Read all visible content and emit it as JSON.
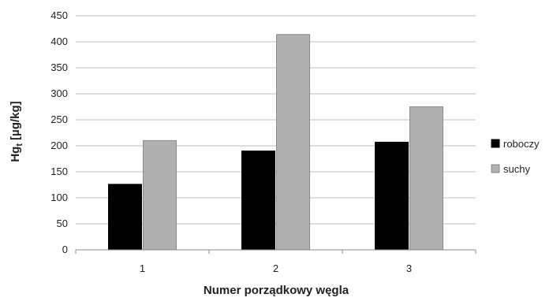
{
  "chart_data": {
    "type": "bar",
    "categories": [
      "1",
      "2",
      "3"
    ],
    "series": [
      {
        "name": "roboczy",
        "values": [
          126,
          190,
          207
        ],
        "color": "#000000"
      },
      {
        "name": "suchy",
        "values": [
          210,
          414,
          275
        ],
        "color": "#b0b0b0"
      }
    ],
    "yticks": [
      "0",
      "50",
      "100",
      "150",
      "200",
      "250",
      "300",
      "350",
      "400",
      "450"
    ],
    "ylim": [
      0,
      450
    ],
    "ylabel": "Hg",
    "ylabel_sub": "t",
    "ylabel_unit": " [µg/kg]",
    "xlabel": "Numer porządkowy węgla",
    "grid": true,
    "legend_position": "right"
  }
}
